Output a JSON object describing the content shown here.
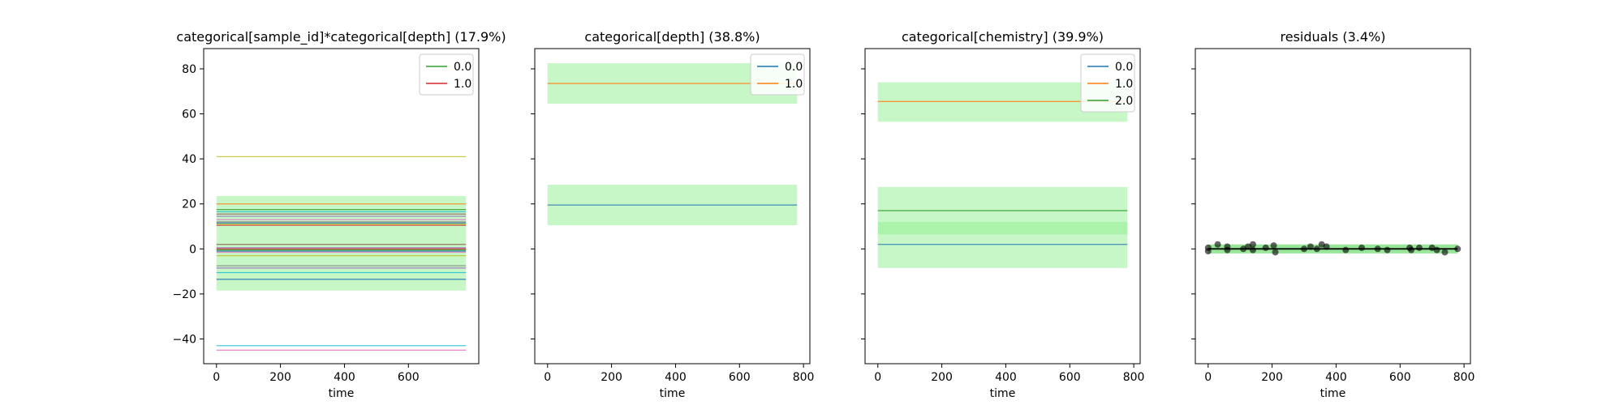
{
  "chart_data": [
    {
      "type": "line",
      "title": "categorical[sample_id]*categorical[depth] (17.9%)",
      "xlabel": "time",
      "ylabel": "",
      "xlim": [
        -40,
        820
      ],
      "ylim": [
        -51,
        89
      ],
      "xticks": [
        0,
        200,
        400,
        600
      ],
      "yticks": [
        -40,
        -20,
        0,
        20,
        40,
        60,
        80
      ],
      "show_yticklabels": true,
      "x": [
        0,
        780
      ],
      "bands": [
        {
          "y0": -18.5,
          "y1": 23.5,
          "color": "#90ee90"
        }
      ],
      "lines": [
        {
          "y": 41.0,
          "color": "#bcbd22"
        },
        {
          "y": 20.0,
          "color": "#ff7f0e"
        },
        {
          "y": 17.5,
          "color": "#2ca02c"
        },
        {
          "y": 16.5,
          "color": "#17becf"
        },
        {
          "y": 15.5,
          "color": "#8c564b"
        },
        {
          "y": 14.5,
          "color": "#9467bd"
        },
        {
          "y": 13.0,
          "color": "#e377c2"
        },
        {
          "y": 12.0,
          "color": "#7f7f7f"
        },
        {
          "y": 11.5,
          "color": "#1f77b4"
        },
        {
          "y": 11.0,
          "color": "#bcbd22"
        },
        {
          "y": 10.5,
          "color": "#d62728"
        },
        {
          "y": 2.0,
          "color": "#8c564b"
        },
        {
          "y": 0.5,
          "color": "#9467bd"
        },
        {
          "y": 0.0,
          "color": "#d62728"
        },
        {
          "y": -0.5,
          "color": "#2ca02c"
        },
        {
          "y": -1.0,
          "color": "#1f77b4"
        },
        {
          "y": -1.5,
          "color": "#e377c2"
        },
        {
          "y": -3.0,
          "color": "#bcbd22"
        },
        {
          "y": -7.5,
          "color": "#7f7f7f"
        },
        {
          "y": -8.5,
          "color": "#9467bd"
        },
        {
          "y": -10.5,
          "color": "#17becf"
        },
        {
          "y": -13.5,
          "color": "#1f77b4"
        },
        {
          "y": -43.0,
          "color": "#17becf"
        },
        {
          "y": -45.0,
          "color": "#e377c2"
        }
      ],
      "legend": {
        "position": "top-right",
        "entries": [
          {
            "label": "0.0",
            "color": "#2ca02c"
          },
          {
            "label": "1.0",
            "color": "#d62728"
          }
        ]
      }
    },
    {
      "type": "line",
      "title": "categorical[depth] (38.8%)",
      "xlabel": "time",
      "ylabel": "",
      "xlim": [
        -40,
        820
      ],
      "ylim": [
        -51,
        89
      ],
      "xticks": [
        0,
        200,
        400,
        600,
        800
      ],
      "yticks": [
        -40,
        -20,
        0,
        20,
        40,
        60,
        80
      ],
      "show_yticklabels": false,
      "x": [
        0,
        780
      ],
      "bands": [
        {
          "y0": 64.5,
          "y1": 82.5,
          "color": "#90ee90"
        },
        {
          "y0": 10.5,
          "y1": 28.5,
          "color": "#90ee90"
        }
      ],
      "lines": [
        {
          "y": 73.5,
          "color": "#ff7f0e"
        },
        {
          "y": 19.5,
          "color": "#1f77b4"
        }
      ],
      "legend": {
        "position": "top-right",
        "entries": [
          {
            "label": "0.0",
            "color": "#1f77b4"
          },
          {
            "label": "1.0",
            "color": "#ff7f0e"
          }
        ]
      }
    },
    {
      "type": "line",
      "title": "categorical[chemistry] (39.9%)",
      "xlabel": "time",
      "ylabel": "",
      "xlim": [
        -40,
        820
      ],
      "ylim": [
        -51,
        89
      ],
      "xticks": [
        0,
        200,
        400,
        600,
        800
      ],
      "yticks": [
        -40,
        -20,
        0,
        20,
        40,
        60,
        80
      ],
      "show_yticklabels": false,
      "x": [
        0,
        780
      ],
      "bands": [
        {
          "y0": 56.5,
          "y1": 74.0,
          "color": "#90ee90"
        },
        {
          "y0": 6.5,
          "y1": 27.5,
          "color": "#90ee90"
        },
        {
          "y0": -8.5,
          "y1": 12.0,
          "color": "#90ee90"
        }
      ],
      "lines": [
        {
          "y": 65.5,
          "color": "#ff7f0e"
        },
        {
          "y": 17.0,
          "color": "#2ca02c"
        },
        {
          "y": 2.0,
          "color": "#1f77b4"
        }
      ],
      "legend": {
        "position": "top-right",
        "entries": [
          {
            "label": "0.0",
            "color": "#1f77b4"
          },
          {
            "label": "1.0",
            "color": "#ff7f0e"
          },
          {
            "label": "2.0",
            "color": "#2ca02c"
          }
        ]
      }
    },
    {
      "type": "scatter",
      "title": "residuals (3.4%)",
      "xlabel": "time",
      "ylabel": "",
      "xlim": [
        -40,
        820
      ],
      "ylim": [
        -51,
        89
      ],
      "xticks": [
        0,
        200,
        400,
        600,
        800
      ],
      "yticks": [
        -40,
        -20,
        0,
        20,
        40,
        60,
        80
      ],
      "show_yticklabels": false,
      "x": [
        0,
        780
      ],
      "bands": [
        {
          "y0": -2.0,
          "y1": 2.0,
          "color": "#32cd32"
        }
      ],
      "lines": [
        {
          "y": 0.0,
          "color": "#000000"
        }
      ],
      "points": [
        {
          "x": 0,
          "y": 0.5
        },
        {
          "x": 0,
          "y": -1.0
        },
        {
          "x": 30,
          "y": 2.0
        },
        {
          "x": 60,
          "y": 1.0
        },
        {
          "x": 60,
          "y": -0.5
        },
        {
          "x": 110,
          "y": 0.0
        },
        {
          "x": 125,
          "y": 1.0
        },
        {
          "x": 140,
          "y": 2.0
        },
        {
          "x": 140,
          "y": -0.5
        },
        {
          "x": 180,
          "y": 0.5
        },
        {
          "x": 205,
          "y": 1.5
        },
        {
          "x": 210,
          "y": -1.5
        },
        {
          "x": 300,
          "y": 0.0
        },
        {
          "x": 320,
          "y": 1.0
        },
        {
          "x": 340,
          "y": 0.0
        },
        {
          "x": 355,
          "y": 2.0
        },
        {
          "x": 370,
          "y": 1.0
        },
        {
          "x": 430,
          "y": -0.5
        },
        {
          "x": 480,
          "y": 0.5
        },
        {
          "x": 530,
          "y": 0.0
        },
        {
          "x": 560,
          "y": -0.5
        },
        {
          "x": 630,
          "y": 0.5
        },
        {
          "x": 635,
          "y": -0.5
        },
        {
          "x": 660,
          "y": 0.5
        },
        {
          "x": 700,
          "y": 0.5
        },
        {
          "x": 715,
          "y": -0.5
        },
        {
          "x": 740,
          "y": -1.5
        },
        {
          "x": 780,
          "y": 0.0
        }
      ],
      "point_color": "#000000",
      "legend": null
    }
  ]
}
